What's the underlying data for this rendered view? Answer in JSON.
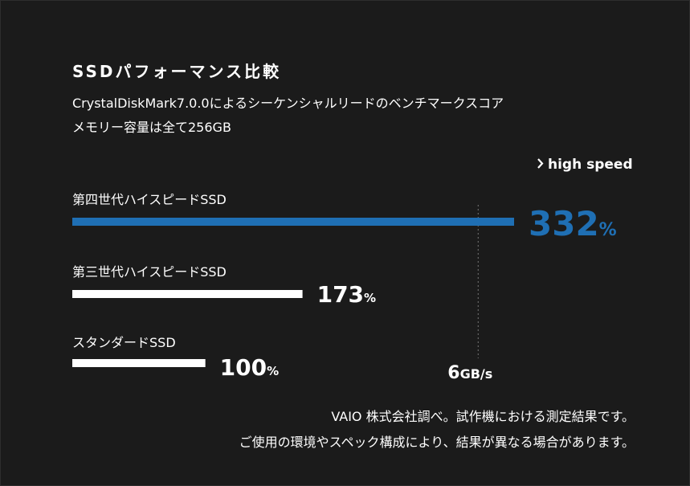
{
  "chart_data": {
    "type": "hbar",
    "title": "SSDパフォーマンス比較",
    "subtitle": [
      "CrystalDiskMark7.0.0によるシーケンシャルリードのベンチマークスコア",
      "メモリー容量は全て256GB"
    ],
    "highlight_label": "high speed",
    "categories": [
      "第四世代ハイスピードSSD",
      "第三世代ハイスピードSSD",
      "スタンダードSSD"
    ],
    "values": [
      332,
      173,
      100
    ],
    "value_labels": [
      "332%",
      "173%",
      "100%"
    ],
    "colors": [
      "#1f6fb4",
      "#ffffff",
      "#ffffff"
    ],
    "xlim": [
      0,
      332
    ],
    "reference_line": {
      "value": 305,
      "label": "6GB/s"
    },
    "notes": [
      "VAIO 株式会社調べ。試作機における測定結果です。",
      "ご使用の環境やスペック構成により、結果が異なる場合があります。"
    ]
  }
}
